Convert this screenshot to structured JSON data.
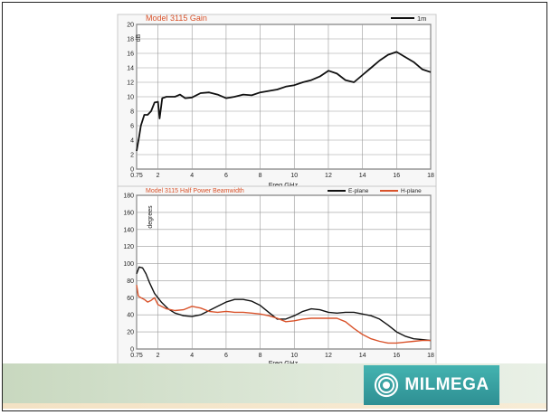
{
  "colors": {
    "gain_line": "#111111",
    "e_plane": "#111111",
    "h_plane": "#d9532b",
    "title_red": "#d9532b",
    "grid": "#9a9a9a",
    "plot_bg": "#ffffff"
  },
  "logo": {
    "text": "MILMEGA",
    "icon": "milmega-swirl-icon"
  },
  "chart_data": [
    {
      "type": "line",
      "title": "Model 3115 Gain",
      "xlabel": "Freq GHz",
      "ylabel": "dB",
      "xlim": [
        0.75,
        18
      ],
      "ylim": [
        0,
        20
      ],
      "x_ticks": [
        "0.75",
        "2",
        "4",
        "6",
        "8",
        "10",
        "12",
        "14",
        "16",
        "18"
      ],
      "y_ticks": [
        "0",
        "2",
        "4",
        "6",
        "8",
        "10",
        "12",
        "14",
        "16",
        "18",
        "20"
      ],
      "grid": true,
      "legend": "top-right",
      "series": [
        {
          "name": "1m",
          "x": [
            0.75,
            0.9,
            1.0,
            1.2,
            1.4,
            1.6,
            1.8,
            2.0,
            2.1,
            2.25,
            2.5,
            2.8,
            3.0,
            3.3,
            3.6,
            4.0,
            4.5,
            5.0,
            5.5,
            6.0,
            6.5,
            7.0,
            7.5,
            8.0,
            8.5,
            9.0,
            9.5,
            10.0,
            10.5,
            11.0,
            11.5,
            12.0,
            12.5,
            13.0,
            13.5,
            14.0,
            14.5,
            15.0,
            15.5,
            16.0,
            16.5,
            17.0,
            17.5,
            18.0
          ],
          "values": [
            2.5,
            4.5,
            6.0,
            7.5,
            7.5,
            8.0,
            9.2,
            9.3,
            7.0,
            9.8,
            10.0,
            10.0,
            10.0,
            10.3,
            9.8,
            9.9,
            10.5,
            10.6,
            10.3,
            9.8,
            10.0,
            10.3,
            10.2,
            10.6,
            10.8,
            11.0,
            11.4,
            11.6,
            12.0,
            12.3,
            12.8,
            13.6,
            13.2,
            12.3,
            12.0,
            13.0,
            14.0,
            15.0,
            15.8,
            16.2,
            15.5,
            14.8,
            13.8,
            13.4
          ]
        }
      ]
    },
    {
      "type": "line",
      "title": "Model 3115 Half Power Beamwidth",
      "xlabel": "Freq GHz",
      "ylabel": "degrees",
      "xlim": [
        0.75,
        18
      ],
      "ylim": [
        0,
        180
      ],
      "x_ticks": [
        "0.75",
        "2",
        "4",
        "6",
        "8",
        "10",
        "12",
        "14",
        "16",
        "18"
      ],
      "y_ticks": [
        "0",
        "20",
        "40",
        "60",
        "80",
        "100",
        "120",
        "140",
        "160",
        "180"
      ],
      "grid": true,
      "legend": "top-right",
      "series": [
        {
          "name": "E-plane",
          "x": [
            0.75,
            0.9,
            1.1,
            1.3,
            1.5,
            1.8,
            2.2,
            2.6,
            3.0,
            3.5,
            4.0,
            4.5,
            5.0,
            5.5,
            6.0,
            6.5,
            7.0,
            7.5,
            8.0,
            8.5,
            9.0,
            9.5,
            10.0,
            10.5,
            11.0,
            11.5,
            12.0,
            12.5,
            13.0,
            13.5,
            14.0,
            14.5,
            15.0,
            15.5,
            16.0,
            16.5,
            17.0,
            17.5,
            18.0
          ],
          "values": [
            88,
            96,
            95,
            88,
            78,
            65,
            55,
            47,
            42,
            39,
            38,
            40,
            45,
            50,
            55,
            58,
            58,
            56,
            51,
            43,
            35,
            35,
            39,
            44,
            47,
            46,
            43,
            42,
            43,
            43,
            41,
            39,
            35,
            28,
            20,
            15,
            12,
            11,
            10
          ]
        },
        {
          "name": "H-plane",
          "x": [
            0.75,
            0.85,
            1.0,
            1.2,
            1.4,
            1.6,
            1.8,
            2.0,
            2.5,
            3.0,
            3.5,
            4.0,
            4.5,
            5.0,
            5.5,
            6.0,
            6.5,
            7.0,
            7.5,
            8.0,
            8.5,
            9.0,
            9.5,
            10.0,
            10.5,
            11.0,
            11.5,
            12.0,
            12.5,
            13.0,
            13.5,
            14.0,
            14.5,
            15.0,
            15.5,
            16.0,
            16.5,
            17.0,
            17.5,
            18.0
          ],
          "values": [
            75,
            62,
            60,
            58,
            55,
            57,
            60,
            52,
            47,
            45,
            46,
            50,
            48,
            44,
            43,
            44,
            43,
            43,
            42,
            41,
            39,
            36,
            32,
            33,
            35,
            36,
            36,
            36,
            36,
            32,
            24,
            17,
            12,
            9,
            7,
            7,
            8,
            9,
            10,
            10
          ]
        }
      ]
    }
  ]
}
